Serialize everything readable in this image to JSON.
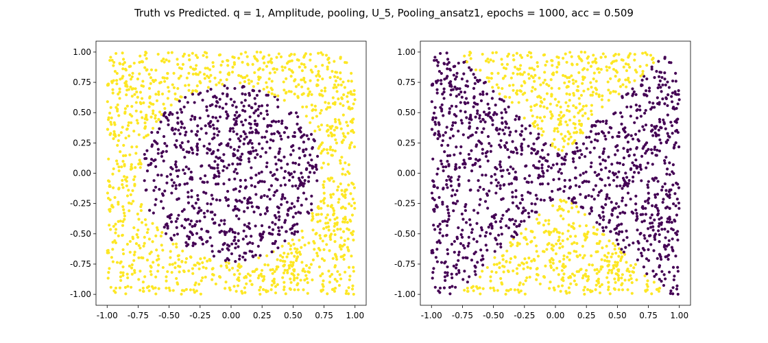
{
  "figure": {
    "title": "Truth vs Predicted. q = 1, Amplitude, pooling, U_5, Pooling_ansatz1, epochs = 1000, acc = 0.509"
  },
  "colors": {
    "class_0": "#440154",
    "class_1": "#fde725"
  },
  "chart_data": [
    {
      "type": "scatter",
      "panel": "truth",
      "title": "",
      "xlabel": "",
      "ylabel": "",
      "xlim": [
        -1.09,
        1.09
      ],
      "ylim": [
        -1.09,
        1.09
      ],
      "xticks": [
        "-1.00",
        "-0.75",
        "-0.50",
        "-0.25",
        "0.00",
        "0.25",
        "0.50",
        "0.75",
        "1.00"
      ],
      "yticks": [
        "-1.00",
        "-0.75",
        "-0.50",
        "-0.25",
        "0.00",
        "0.25",
        "0.50",
        "0.75",
        "1.00"
      ],
      "grid": false,
      "legend": "none",
      "sample_count": 2000,
      "point_domain": [
        -1.0,
        1.0
      ],
      "series": [
        {
          "class": 0,
          "region": "disc centered (0, 0), radius 0.73",
          "color": "#440154"
        },
        {
          "class": 1,
          "region": "outside disc",
          "color": "#fde725"
        }
      ]
    },
    {
      "type": "scatter",
      "panel": "predicted",
      "title": "",
      "xlabel": "",
      "ylabel": "",
      "xlim": [
        -1.09,
        1.09
      ],
      "ylim": [
        -1.09,
        1.09
      ],
      "xticks": [
        "-1.00",
        "-0.75",
        "-0.50",
        "-0.25",
        "0.00",
        "0.25",
        "0.50",
        "0.75",
        "1.00"
      ],
      "yticks": [
        "-1.00",
        "-0.75",
        "-0.50",
        "-0.25",
        "0.00",
        "0.25",
        "0.50",
        "0.75",
        "1.00"
      ],
      "grid": false,
      "legend": "none",
      "sample_count": 2000,
      "point_domain": [
        -1.0,
        1.0
      ],
      "series": [
        {
          "class": 0,
          "region": "left and right wedges: |y| < |x - 0.05| + 0.15",
          "color": "#440154"
        },
        {
          "class": 1,
          "region": "top and bottom wedges",
          "color": "#fde725"
        }
      ]
    }
  ]
}
